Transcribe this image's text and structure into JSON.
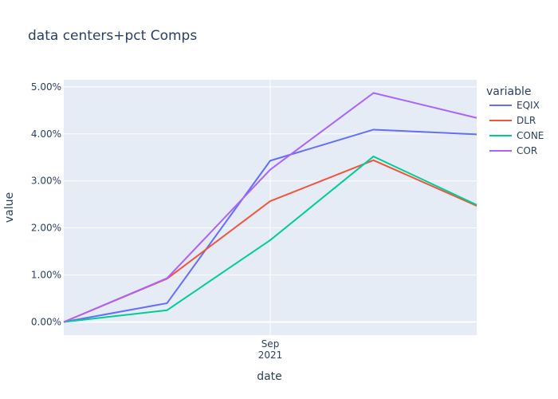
{
  "chart_data": {
    "type": "line",
    "title": "data centers+pct Comps",
    "xlabel": "date",
    "ylabel": "value",
    "x": [
      0,
      1,
      2,
      3,
      4
    ],
    "x_ticks": [
      {
        "x": 2,
        "label_line1": "Sep",
        "label_line2": "2021"
      }
    ],
    "xlim": [
      0,
      4
    ],
    "ylim": [
      -0.0028,
      0.0515
    ],
    "y_ticks": [
      {
        "value": 0.0,
        "label": "0.00%"
      },
      {
        "value": 0.01,
        "label": "1.00%"
      },
      {
        "value": 0.02,
        "label": "2.00%"
      },
      {
        "value": 0.03,
        "label": "3.00%"
      },
      {
        "value": 0.04,
        "label": "4.00%"
      },
      {
        "value": 0.05,
        "label": "5.00%"
      }
    ],
    "legend_title": "variable",
    "legend_position": "right",
    "grid": true,
    "plot_bgcolor": "#e5ecf6",
    "series": [
      {
        "name": "EQIX",
        "color": "#636efa",
        "values": [
          0.0,
          0.004,
          0.0343,
          0.0409,
          0.0399
        ]
      },
      {
        "name": "DLR",
        "color": "#ef553b",
        "values": [
          0.0,
          0.0092,
          0.0257,
          0.0344,
          0.0247
        ]
      },
      {
        "name": "CONE",
        "color": "#00cc96",
        "values": [
          0.0,
          0.0025,
          0.0174,
          0.0352,
          0.0249
        ]
      },
      {
        "name": "COR",
        "color": "#ab63fa",
        "values": [
          0.0,
          0.0093,
          0.0324,
          0.0487,
          0.0434
        ]
      }
    ]
  }
}
